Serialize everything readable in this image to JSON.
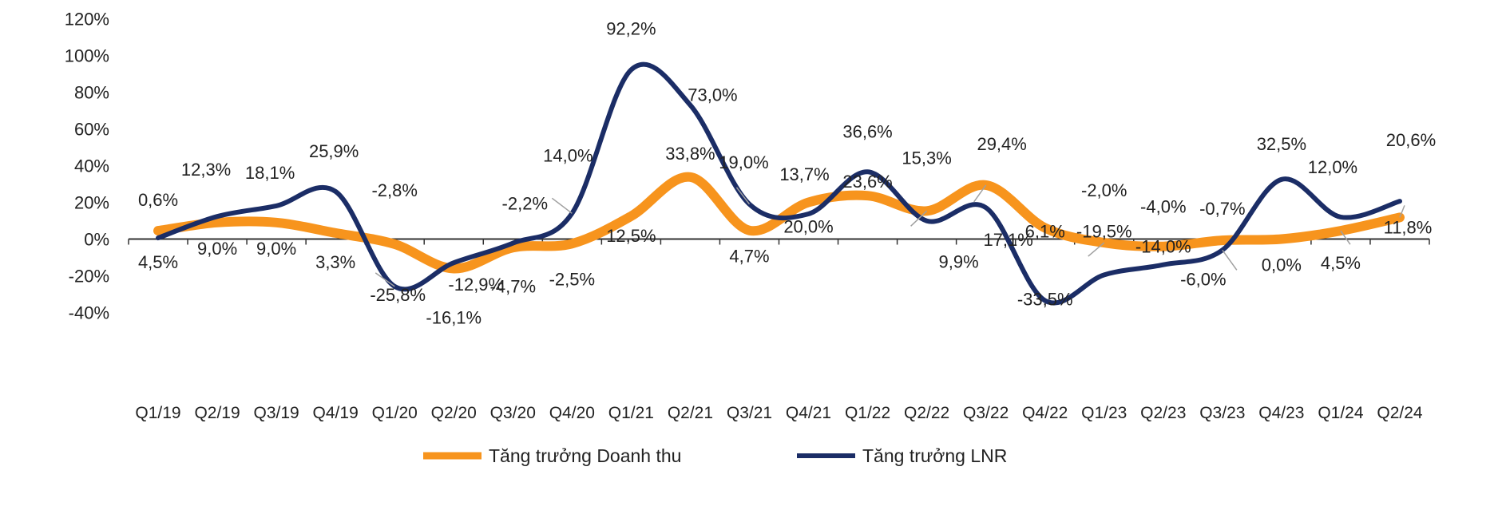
{
  "chart_data": {
    "type": "line",
    "title": "",
    "xlabel": "",
    "ylabel": "",
    "ylim": [
      -40,
      120
    ],
    "yticks": [
      -40,
      -20,
      0,
      20,
      40,
      60,
      80,
      100,
      120
    ],
    "ytick_labels": [
      "-40%",
      "-20%",
      "0%",
      "20%",
      "40%",
      "60%",
      "80%",
      "100%",
      "120%"
    ],
    "categories": [
      "Q1/19",
      "Q2/19",
      "Q3/19",
      "Q4/19",
      "Q1/20",
      "Q2/20",
      "Q3/20",
      "Q4/20",
      "Q1/21",
      "Q2/21",
      "Q3/21",
      "Q4/21",
      "Q1/22",
      "Q2/22",
      "Q3/22",
      "Q4/22",
      "Q1/23",
      "Q2/23",
      "Q3/23",
      "Q4/23",
      "Q1/24",
      "Q2/24"
    ],
    "grid": false,
    "legend_position": "bottom",
    "series": [
      {
        "name": "Tăng trưởng Doanh thu",
        "color": "#F7941D",
        "values": [
          4.5,
          9.0,
          9.0,
          3.3,
          -2.8,
          -16.1,
          -4.7,
          -2.5,
          12.5,
          33.8,
          4.7,
          20.0,
          23.6,
          15.3,
          29.4,
          6.1,
          -2.0,
          -4.0,
          -0.7,
          0.0,
          4.5,
          11.8
        ],
        "labels": [
          "4,5%",
          "9,0%",
          "9,0%",
          "3,3%",
          "-2,8%",
          "-16,1%",
          "-4,7%",
          "-2,5%",
          "12,5%",
          "33,8%",
          "4,7%",
          "20,0%",
          "23,6%",
          "15,3%",
          "29,4%",
          "6,1%",
          "-2,0%",
          "-4,0%",
          "-0,7%",
          "0,0%",
          "4,5%",
          "11,8%"
        ]
      },
      {
        "name": "Tăng trưởng LNR",
        "color": "#1B2D66",
        "values": [
          0.6,
          12.3,
          18.1,
          25.9,
          -25.8,
          -12.9,
          -2.2,
          14.0,
          92.2,
          73.0,
          19.0,
          13.7,
          36.6,
          9.9,
          17.1,
          -33.5,
          -19.5,
          -14.0,
          -6.0,
          32.5,
          12.0,
          20.6
        ],
        "labels": [
          "0,6%",
          "12,3%",
          "18,1%",
          "25,9%",
          "-25,8%",
          "-12,9%",
          "-2,2%",
          "14,0%",
          "92,2%",
          "73,0%",
          "19,0%",
          "13,7%",
          "36,6%",
          "9,9%",
          "17,1%",
          "-33,5%",
          "-19,5%",
          "-14,0%",
          "-6,0%",
          "32,5%",
          "12,0%",
          "20,6%"
        ]
      }
    ]
  }
}
